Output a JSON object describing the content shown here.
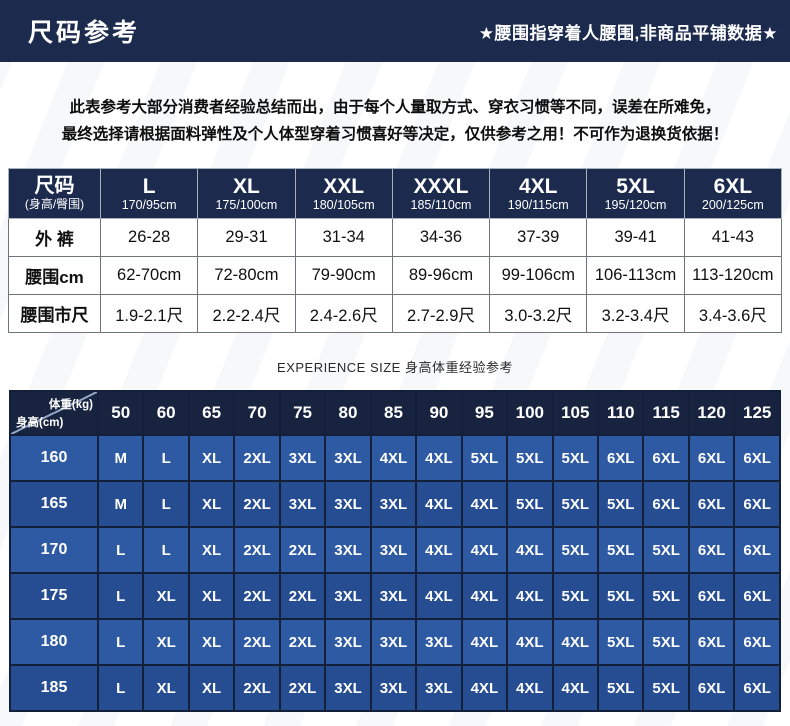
{
  "header": {
    "title": "尺码参考",
    "note": "★腰围指穿着人腰围,非商品平铺数据★"
  },
  "intro": {
    "line1": "此表参考大部分消费者经验总结而出，由于每个人量取方式、穿衣习惯等不同，误差在所难免，",
    "line2": "最终选择请根据面料弹性及个人体型穿着习惯喜好等决定，仅供参考之用！不可作为退换货依据！"
  },
  "size_table": {
    "corner": {
      "title": "尺码",
      "subtitle": "(身高/臀围)"
    },
    "columns": [
      {
        "size": "L",
        "spec": "170/95cm"
      },
      {
        "size": "XL",
        "spec": "175/100cm"
      },
      {
        "size": "XXL",
        "spec": "180/105cm"
      },
      {
        "size": "XXXL",
        "spec": "185/110cm"
      },
      {
        "size": "4XL",
        "spec": "190/115cm"
      },
      {
        "size": "5XL",
        "spec": "195/120cm"
      },
      {
        "size": "6XL",
        "spec": "200/125cm"
      }
    ],
    "rows": [
      {
        "label": "外 裤",
        "values": [
          "26-28",
          "29-31",
          "31-34",
          "34-36",
          "37-39",
          "39-41",
          "41-43"
        ]
      },
      {
        "label": "腰围cm",
        "values": [
          "62-70cm",
          "72-80cm",
          "79-90cm",
          "89-96cm",
          "99-106cm",
          "106-113cm",
          "113-120cm"
        ]
      },
      {
        "label": "腰围市尺",
        "values": [
          "1.9-2.1尺",
          "2.2-2.4尺",
          "2.4-2.6尺",
          "2.7-2.9尺",
          "3.0-3.2尺",
          "3.2-3.4尺",
          "3.4-3.6尺"
        ]
      }
    ]
  },
  "experience": {
    "caption": "EXPERIENCE SIZE 身高体重经验参考",
    "corner": {
      "top": "体重(kg)",
      "bottom": "身高(cm)"
    },
    "weights": [
      "50",
      "60",
      "65",
      "70",
      "75",
      "80",
      "85",
      "90",
      "95",
      "100",
      "105",
      "110",
      "115",
      "120",
      "125"
    ],
    "rows": [
      {
        "height": "160",
        "sizes": [
          "M",
          "L",
          "XL",
          "2XL",
          "3XL",
          "3XL",
          "4XL",
          "4XL",
          "5XL",
          "5XL",
          "5XL",
          "6XL",
          "6XL",
          "6XL",
          "6XL"
        ]
      },
      {
        "height": "165",
        "sizes": [
          "M",
          "L",
          "XL",
          "2XL",
          "3XL",
          "3XL",
          "3XL",
          "4XL",
          "4XL",
          "5XL",
          "5XL",
          "5XL",
          "6XL",
          "6XL",
          "6XL"
        ]
      },
      {
        "height": "170",
        "sizes": [
          "L",
          "L",
          "XL",
          "2XL",
          "2XL",
          "3XL",
          "3XL",
          "4XL",
          "4XL",
          "4XL",
          "5XL",
          "5XL",
          "5XL",
          "6XL",
          "6XL"
        ]
      },
      {
        "height": "175",
        "sizes": [
          "L",
          "XL",
          "XL",
          "2XL",
          "2XL",
          "3XL",
          "3XL",
          "4XL",
          "4XL",
          "4XL",
          "5XL",
          "5XL",
          "5XL",
          "6XL",
          "6XL"
        ]
      },
      {
        "height": "180",
        "sizes": [
          "L",
          "XL",
          "XL",
          "2XL",
          "2XL",
          "3XL",
          "3XL",
          "3XL",
          "4XL",
          "4XL",
          "4XL",
          "5XL",
          "5XL",
          "6XL",
          "6XL"
        ]
      },
      {
        "height": "185",
        "sizes": [
          "L",
          "XL",
          "XL",
          "2XL",
          "2XL",
          "3XL",
          "3XL",
          "3XL",
          "4XL",
          "4XL",
          "4XL",
          "5XL",
          "5XL",
          "6XL",
          "6XL"
        ]
      }
    ]
  },
  "colors": {
    "header_bg": "#1c2b4d",
    "size_table_header_bg": "#1c2b4d",
    "experience_header_bg": "#17233f",
    "row_blue_odd": "#2e5aa4",
    "row_blue_even": "#264d92",
    "grid_line_dark": "#141f3a",
    "text_on_dark": "#ffffff"
  }
}
